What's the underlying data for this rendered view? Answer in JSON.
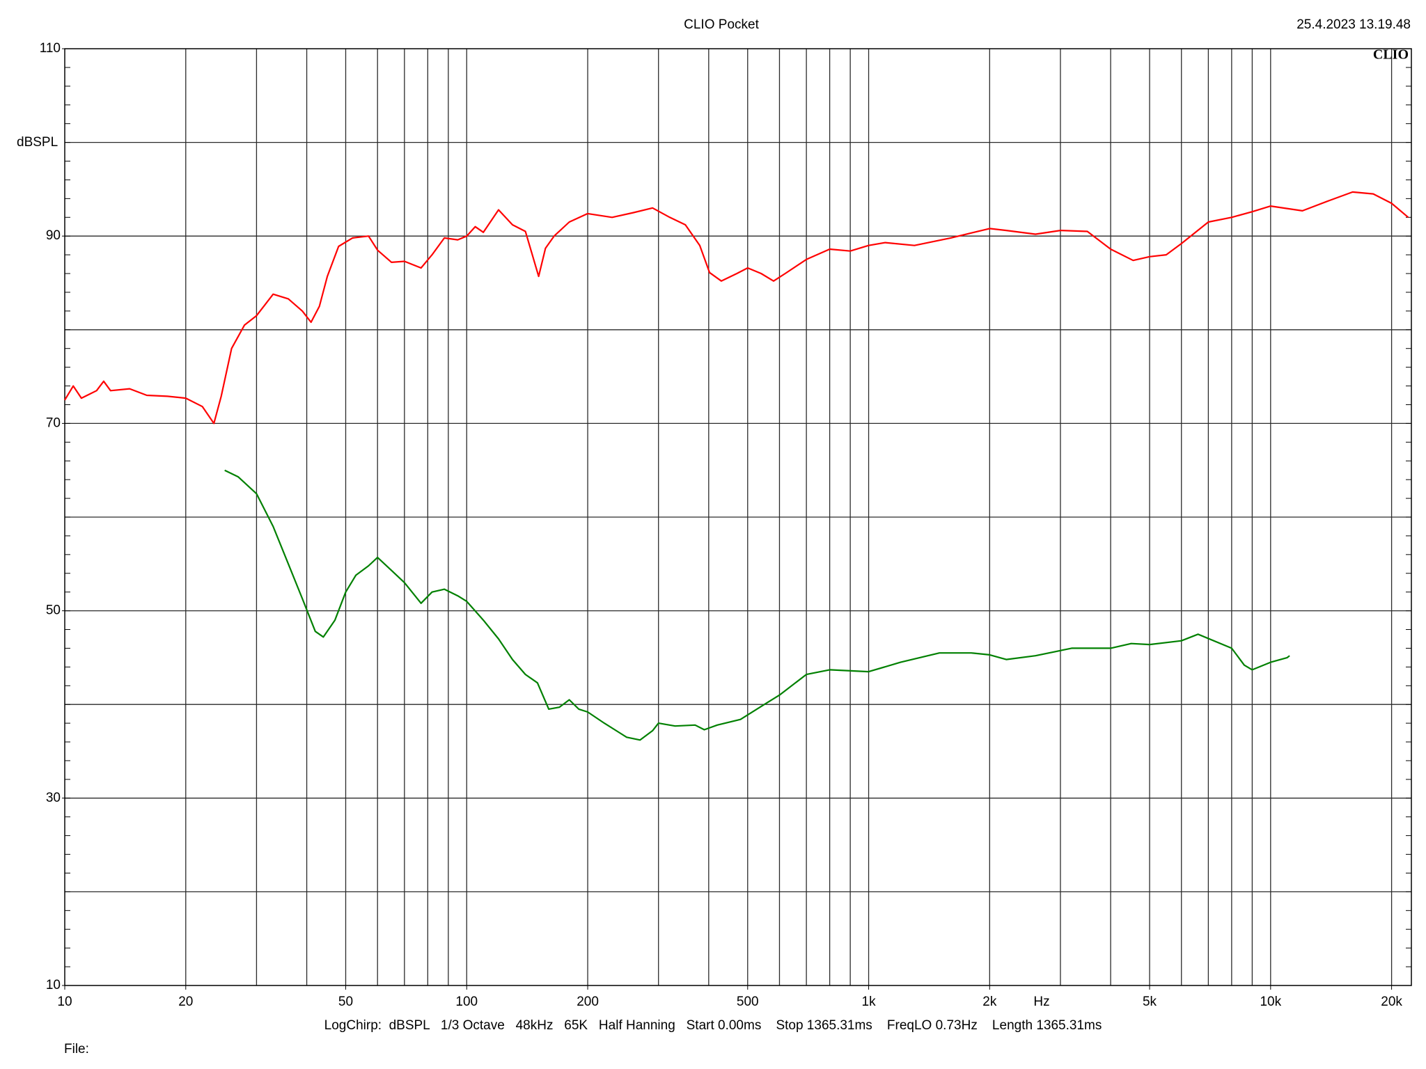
{
  "chart_data": {
    "type": "line",
    "title": "CLIO Pocket",
    "timestamp": "25.4.2023 13.19.48",
    "brand": "CLIO",
    "ylabel": "dBSPL",
    "xlabel": "Hz",
    "settings": "LogChirp:  dBSPL   1/3 Octave   48kHz   65K   Half Hanning   Start 0.00ms    Stop 1365.31ms    FreqLO 0.73Hz    Length 1365.31ms",
    "file_label": "File:",
    "xscale": "log",
    "xlim": [
      10,
      22400
    ],
    "ylim": [
      10,
      110
    ],
    "xticks": [
      10,
      20,
      50,
      100,
      200,
      500,
      {
        "value": 1000,
        "label": "1k"
      },
      {
        "value": 2000,
        "label": "2k"
      },
      {
        "value": 5000,
        "label": "5k"
      },
      {
        "value": 10000,
        "label": "10k"
      },
      {
        "value": 20000,
        "label": "20k"
      }
    ],
    "xgrid": [
      20,
      30,
      40,
      50,
      60,
      70,
      80,
      90,
      100,
      200,
      300,
      400,
      500,
      600,
      700,
      800,
      900,
      1000,
      2000,
      3000,
      4000,
      5000,
      6000,
      7000,
      8000,
      9000,
      10000,
      20000
    ],
    "yticks": [
      10,
      30,
      50,
      70,
      90,
      110
    ],
    "ygrid": [
      20,
      30,
      40,
      50,
      60,
      70,
      80,
      90,
      100
    ],
    "yminor_step": 2,
    "series": [
      {
        "color": "#ff0000",
        "x": [
          10,
          10.5,
          11,
          12,
          12.5,
          13,
          14.5,
          16,
          18,
          20,
          22,
          23.5,
          24.5,
          26,
          28,
          30,
          33,
          36,
          39,
          41,
          43,
          45,
          48,
          52,
          57,
          60,
          65,
          70,
          77,
          82,
          88,
          95,
          100,
          105,
          110,
          120,
          130,
          140,
          151,
          157,
          165,
          180,
          200,
          230,
          260,
          290,
          320,
          350,
          380,
          402,
          430,
          470,
          500,
          540,
          580,
          620,
          700,
          800,
          900,
          1000,
          1100,
          1300,
          1600,
          2000,
          2200,
          2600,
          3000,
          3500,
          4000,
          4550,
          5000,
          5500,
          6000,
          7000,
          8000,
          9000,
          10000,
          12000,
          14000,
          16000,
          18000,
          20000,
          22000
        ],
        "values": [
          72.5,
          74,
          72.7,
          73.5,
          74.5,
          73.5,
          73.7,
          73,
          72.9,
          72.7,
          71.8,
          70,
          72.9,
          78,
          80.5,
          81.5,
          83.8,
          83.3,
          82,
          80.8,
          82.5,
          85.7,
          88.9,
          89.8,
          90,
          88.5,
          87.2,
          87.3,
          86.6,
          88,
          89.8,
          89.6,
          90,
          91,
          90.4,
          92.8,
          91.2,
          90.5,
          85.7,
          88.7,
          90,
          91.5,
          92.4,
          92,
          92.5,
          93,
          92,
          91.2,
          89,
          86.1,
          85.2,
          86,
          86.6,
          86,
          85.2,
          86,
          87.5,
          88.6,
          88.4,
          89,
          89.3,
          89,
          89.8,
          90.8,
          90.6,
          90.2,
          90.6,
          90.5,
          88.6,
          87.4,
          87.8,
          88,
          89.2,
          91.5,
          92,
          92.6,
          93.2,
          92.7,
          93.8,
          94.7,
          94.5,
          93.5,
          92
        ]
      },
      {
        "color": "#008000",
        "x": [
          25,
          27,
          30,
          33,
          36,
          39,
          42,
          44,
          47,
          50,
          53,
          57,
          60,
          65,
          70,
          77,
          82,
          88,
          95,
          100,
          110,
          120,
          130,
          140,
          150,
          160,
          170,
          180,
          190,
          200,
          220,
          250,
          270,
          290,
          300,
          330,
          370,
          390,
          420,
          480,
          550,
          600,
          700,
          800,
          1000,
          1200,
          1500,
          1800,
          2000,
          2200,
          2600,
          3200,
          4000,
          4500,
          5000,
          6000,
          6600,
          8000,
          8600,
          9000,
          10000,
          11000,
          11150
        ],
        "values": [
          65,
          64.3,
          62.5,
          59,
          55,
          51.3,
          47.8,
          47.2,
          49,
          52,
          53.8,
          54.8,
          55.7,
          54.3,
          53,
          50.8,
          52,
          52.3,
          51.6,
          51,
          49,
          47,
          44.8,
          43.2,
          42.3,
          39.5,
          39.7,
          40.5,
          39.5,
          39.2,
          38,
          36.5,
          36.2,
          37.2,
          38,
          37.7,
          37.8,
          37.3,
          37.8,
          38.4,
          40,
          41,
          43.2,
          43.7,
          43.5,
          44.5,
          45.5,
          45.5,
          45.3,
          44.8,
          45.2,
          46,
          46,
          46.5,
          46.4,
          46.8,
          47.5,
          46,
          44.2,
          43.7,
          44.5,
          45,
          45.2
        ]
      }
    ]
  }
}
